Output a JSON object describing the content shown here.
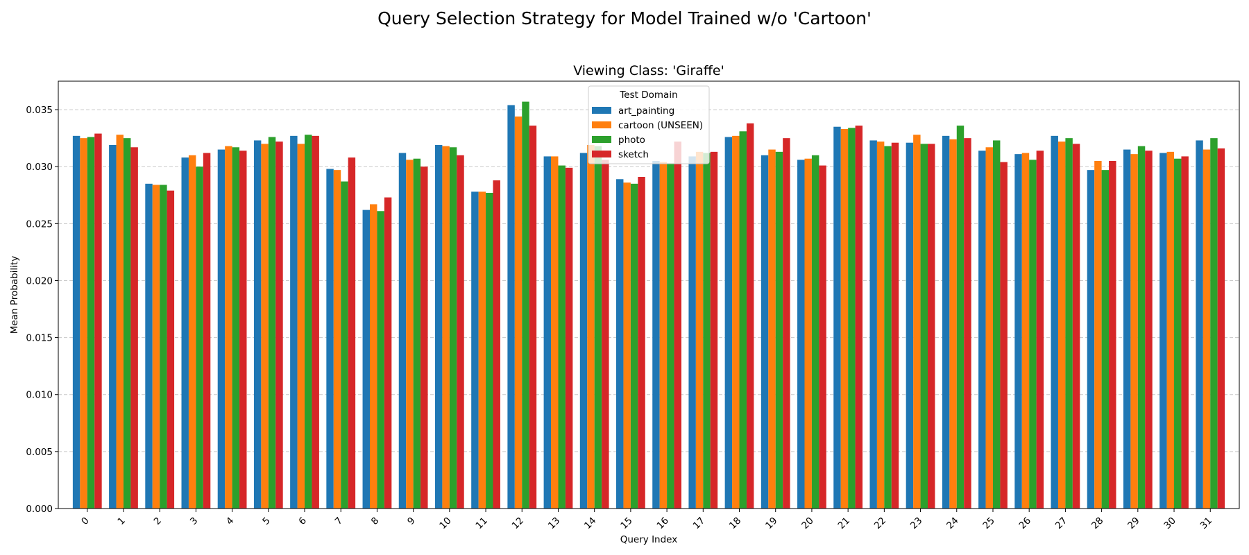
{
  "chart_data": {
    "type": "bar",
    "suptitle": "Query Selection Strategy for Model Trained w/o 'Cartoon'",
    "title": "Viewing Class: 'Giraffe'",
    "xlabel": "Query Index",
    "ylabel": "Mean Probability",
    "ylim": [
      0,
      0.0375
    ],
    "yticks": [
      "0.000",
      "0.005",
      "0.010",
      "0.015",
      "0.020",
      "0.025",
      "0.030",
      "0.035"
    ],
    "grid": "y-dashed",
    "legend": {
      "title": "Test Domain",
      "placement": "top-center"
    },
    "categories": [
      "0",
      "1",
      "2",
      "3",
      "4",
      "5",
      "6",
      "7",
      "8",
      "9",
      "10",
      "11",
      "12",
      "13",
      "14",
      "15",
      "16",
      "17",
      "18",
      "19",
      "20",
      "21",
      "22",
      "23",
      "24",
      "25",
      "26",
      "27",
      "28",
      "29",
      "30",
      "31"
    ],
    "series": [
      {
        "name": "art_painting",
        "color": "#1f77b4",
        "values": [
          0.0327,
          0.0319,
          0.0285,
          0.0308,
          0.0315,
          0.0323,
          0.0327,
          0.0298,
          0.0262,
          0.0312,
          0.0319,
          0.0278,
          0.0354,
          0.0309,
          0.0312,
          0.0289,
          0.0305,
          0.0309,
          0.0326,
          0.031,
          0.0306,
          0.0335,
          0.0323,
          0.0321,
          0.0327,
          0.0314,
          0.0311,
          0.0327,
          0.0297,
          0.0315,
          0.0312,
          0.0323
        ]
      },
      {
        "name": "cartoon (UNSEEN)",
        "color": "#ff7f0e",
        "values": [
          0.0325,
          0.0328,
          0.0284,
          0.031,
          0.0318,
          0.032,
          0.032,
          0.0297,
          0.0267,
          0.0306,
          0.0318,
          0.0278,
          0.0344,
          0.0309,
          0.0319,
          0.0286,
          0.0304,
          0.0313,
          0.0327,
          0.0315,
          0.0307,
          0.0333,
          0.0322,
          0.0328,
          0.0324,
          0.0317,
          0.0312,
          0.0322,
          0.0305,
          0.0311,
          0.0313,
          0.0315
        ]
      },
      {
        "name": "photo",
        "color": "#2ca02c",
        "values": [
          0.0326,
          0.0325,
          0.0284,
          0.03,
          0.0317,
          0.0326,
          0.0328,
          0.0287,
          0.0261,
          0.0307,
          0.0317,
          0.0277,
          0.0357,
          0.0301,
          0.0318,
          0.0285,
          0.0303,
          0.0312,
          0.0331,
          0.0313,
          0.031,
          0.0334,
          0.0318,
          0.032,
          0.0336,
          0.0323,
          0.0306,
          0.0325,
          0.0297,
          0.0318,
          0.0307,
          0.0325
        ]
      },
      {
        "name": "sketch",
        "color": "#d62728",
        "values": [
          0.0329,
          0.0317,
          0.0279,
          0.0312,
          0.0314,
          0.0322,
          0.0327,
          0.0308,
          0.0273,
          0.03,
          0.031,
          0.0288,
          0.0336,
          0.0299,
          0.0306,
          0.0291,
          0.0322,
          0.0313,
          0.0338,
          0.0325,
          0.0301,
          0.0336,
          0.0321,
          0.032,
          0.0325,
          0.0304,
          0.0314,
          0.032,
          0.0305,
          0.0314,
          0.0309,
          0.0316
        ]
      }
    ]
  }
}
